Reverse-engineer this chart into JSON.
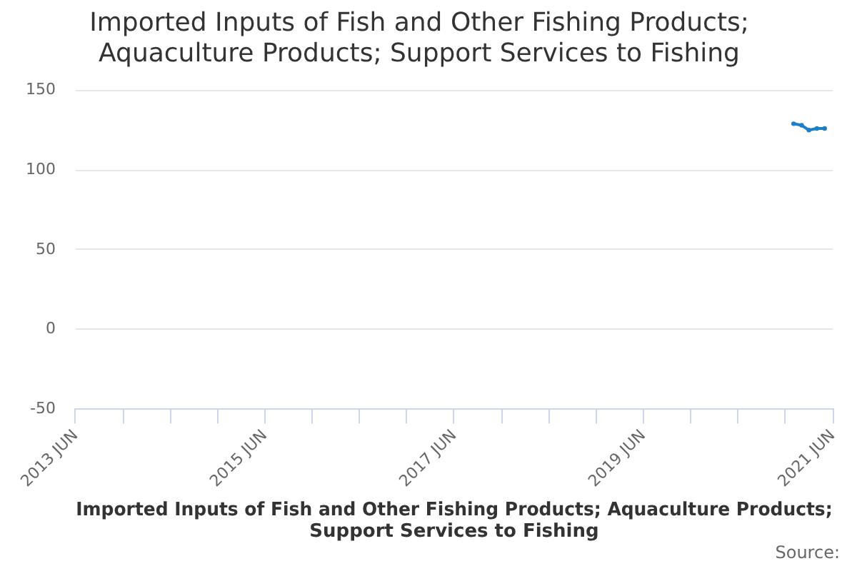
{
  "chart_data": {
    "type": "line",
    "title": "Imported Inputs of Fish and Other Fishing Products; Aquaculture Products; Support Services to Fishing",
    "xlabel": "Imported Inputs of Fish and Other Fishing Products; Aquaculture Products; Support Services to Fishing",
    "annotations": [
      "Source:"
    ],
    "x": [
      "2021-01",
      "2021-02",
      "2021-03",
      "2021-04",
      "2021-05"
    ],
    "series": [
      {
        "color": "#1b7fcc",
        "values": [
          129,
          128,
          125,
          126,
          126
        ]
      }
    ],
    "xlim": [
      "2013-06",
      "2021-06"
    ],
    "xticks": [
      {
        "value": "2013-06",
        "label": "2013 JUN"
      },
      {
        "value": "2013-12",
        "label": null
      },
      {
        "value": "2014-06",
        "label": null
      },
      {
        "value": "2014-12",
        "label": null
      },
      {
        "value": "2015-06",
        "label": "2015 JUN"
      },
      {
        "value": "2015-12",
        "label": null
      },
      {
        "value": "2016-06",
        "label": null
      },
      {
        "value": "2016-12",
        "label": null
      },
      {
        "value": "2017-06",
        "label": "2017 JUN"
      },
      {
        "value": "2017-12",
        "label": null
      },
      {
        "value": "2018-06",
        "label": null
      },
      {
        "value": "2018-12",
        "label": null
      },
      {
        "value": "2019-06",
        "label": "2019 JUN"
      },
      {
        "value": "2019-12",
        "label": null
      },
      {
        "value": "2020-06",
        "label": null
      },
      {
        "value": "2020-12",
        "label": null
      },
      {
        "value": "2021-06",
        "label": "2021 JUN"
      }
    ],
    "ylim": [
      -50,
      150
    ],
    "yticks": [
      -50,
      0,
      50,
      100,
      150
    ],
    "grid": "y",
    "marker": "circle"
  }
}
